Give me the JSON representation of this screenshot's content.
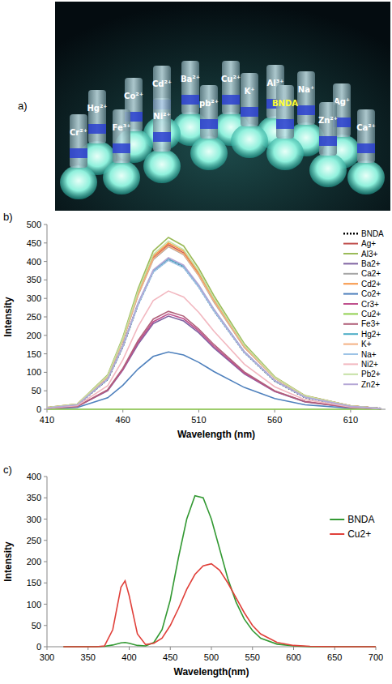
{
  "photo": {
    "panel": "a)",
    "labels": [
      {
        "text": "Cr²⁺",
        "color": "#ffffff"
      },
      {
        "text": "Hg²⁺",
        "color": "#ffffff"
      },
      {
        "text": "Fe³⁺",
        "color": "#ffffff"
      },
      {
        "text": "Co²⁺",
        "color": "#ffffff"
      },
      {
        "text": "Ni²⁺",
        "color": "#ffffff"
      },
      {
        "text": "Cd²⁺",
        "color": "#ffffff"
      },
      {
        "text": "Ba²⁺",
        "color": "#ffffff"
      },
      {
        "text": "pb²⁺",
        "color": "#ffffff"
      },
      {
        "text": "Cu²⁺",
        "color": "#ffffff"
      },
      {
        "text": "K⁺",
        "color": "#ffffff"
      },
      {
        "text": "Al³⁺",
        "color": "#ffffff"
      },
      {
        "text": "BNDA",
        "color": "#ffff33"
      },
      {
        "text": "Na⁺",
        "color": "#ffffff"
      },
      {
        "text": "Zn²⁺",
        "color": "#ffffff"
      },
      {
        "text": "Ag⁺",
        "color": "#ffffff"
      },
      {
        "text": "Ca²⁺",
        "color": "#ffffff"
      }
    ]
  },
  "chart_data": [
    {
      "type": "line",
      "panel": "b)",
      "x_label": "Wavelength (nm)",
      "y_label": "Intensity",
      "legend": "top-right",
      "grid": false,
      "xlim": [
        410,
        633
      ],
      "xticks": [
        410,
        460,
        510,
        560,
        610
      ],
      "ylim": [
        0,
        500
      ],
      "yticks": [
        0,
        50,
        100,
        150,
        200,
        250,
        300,
        350,
        400,
        450,
        500
      ],
      "x": [
        410,
        430,
        450,
        460,
        470,
        480,
        490,
        500,
        510,
        520,
        540,
        560,
        580,
        610,
        630
      ],
      "series": [
        {
          "name": "BNDA",
          "color": "#000000",
          "line_style": "dotted",
          "values": [
            4,
            12,
            81,
            170,
            284,
            373,
            405,
            385,
            332,
            267,
            154,
            77,
            32,
            8,
            2
          ]
        },
        {
          "name": "Ag+",
          "color": "#c0504d",
          "line_style": "solid",
          "values": [
            4,
            13,
            89,
            187,
            312,
            409,
            445,
            423,
            365,
            294,
            169,
            85,
            36,
            9,
            2
          ]
        },
        {
          "name": "Al3+",
          "color": "#9bbb59",
          "line_style": "solid",
          "values": [
            5,
            14,
            93,
            195,
            326,
            428,
            465,
            442,
            381,
            307,
            177,
            88,
            37,
            9,
            2
          ]
        },
        {
          "name": "Ba2+",
          "color": "#8064a2",
          "line_style": "solid",
          "values": [
            3,
            8,
            50,
            106,
            176,
            232,
            252,
            239,
            207,
            166,
            96,
            48,
            20,
            5,
            1
          ]
        },
        {
          "name": "Ca2+",
          "color": "#a5a5a5",
          "line_style": "solid",
          "values": [
            4,
            13,
            88,
            185,
            308,
            405,
            440,
            418,
            361,
            290,
            167,
            84,
            35,
            9,
            2
          ]
        },
        {
          "name": "Cd2+",
          "color": "#f79646",
          "line_style": "solid",
          "values": [
            5,
            14,
            90,
            189,
            315,
            414,
            450,
            428,
            369,
            297,
            171,
            86,
            36,
            9,
            2
          ]
        },
        {
          "name": "Co2+",
          "color": "#4f81bd",
          "line_style": "solid",
          "values": [
            2,
            5,
            31,
            65,
            109,
            143,
            155,
            147,
            127,
            102,
            59,
            29,
            12,
            3,
            1
          ]
        },
        {
          "name": "Cr3+",
          "color": "#c0508d",
          "line_style": "solid",
          "values": [
            3,
            8,
            52,
            108,
            181,
            237,
            258,
            245,
            212,
            170,
            98,
            49,
            21,
            5,
            1
          ]
        },
        {
          "name": "Cu2+",
          "color": "#92d050",
          "line_style": "solid",
          "values": [
            0,
            0,
            0,
            0,
            0,
            0,
            0,
            0,
            0,
            0,
            0,
            0,
            0,
            0,
            0
          ]
        },
        {
          "name": "Fe3+",
          "color": "#b0607a",
          "line_style": "solid",
          "values": [
            3,
            8,
            53,
            111,
            186,
            244,
            265,
            252,
            217,
            175,
            101,
            50,
            21,
            5,
            1
          ]
        },
        {
          "name": "Hg2+",
          "color": "#4bacc6",
          "line_style": "solid",
          "values": [
            4,
            12,
            81,
            171,
            285,
            374,
            407,
            387,
            334,
            269,
            155,
            77,
            33,
            8,
            2
          ]
        },
        {
          "name": "K+",
          "color": "#f4b183",
          "line_style": "solid",
          "values": [
            4,
            13,
            88,
            186,
            309,
            407,
            442,
            420,
            362,
            292,
            168,
            84,
            35,
            9,
            2
          ]
        },
        {
          "name": "Na+",
          "color": "#9dc3e6",
          "line_style": "solid",
          "values": [
            4,
            12,
            81,
            169,
            282,
            371,
            403,
            383,
            330,
            266,
            153,
            77,
            32,
            8,
            2
          ]
        },
        {
          "name": "Ni2+",
          "color": "#f2b8c0",
          "line_style": "solid",
          "values": [
            3,
            10,
            64,
            134,
            224,
            294,
            320,
            304,
            262,
            211,
            122,
            61,
            26,
            6,
            2
          ]
        },
        {
          "name": "Pb2+",
          "color": "#c5e0a5",
          "line_style": "solid",
          "values": [
            5,
            14,
            91,
            191,
            319,
            419,
            455,
            432,
            373,
            300,
            173,
            86,
            36,
            9,
            2
          ]
        },
        {
          "name": "Zn2+",
          "color": "#b4a7d6",
          "line_style": "solid",
          "values": [
            4,
            12,
            82,
            172,
            287,
            377,
            410,
            390,
            336,
            271,
            156,
            78,
            33,
            8,
            2
          ]
        }
      ]
    },
    {
      "type": "line",
      "panel": "c)",
      "x_label": "Wavelength(nm)",
      "y_label": "Intensity",
      "legend": "top-right",
      "grid": false,
      "xlim": [
        300,
        700
      ],
      "xticks": [
        300,
        350,
        400,
        450,
        500,
        550,
        600,
        650,
        700
      ],
      "ylim": [
        0,
        400
      ],
      "yticks": [
        0,
        50,
        100,
        150,
        200,
        250,
        300,
        350,
        400
      ],
      "x": [
        320,
        340,
        360,
        370,
        380,
        390,
        395,
        400,
        410,
        420,
        430,
        440,
        450,
        460,
        470,
        480,
        490,
        500,
        510,
        520,
        530,
        540,
        550,
        560,
        580,
        600,
        620,
        650,
        700
      ],
      "series": [
        {
          "name": "BNDA",
          "color": "#339933",
          "line_style": "solid",
          "values": [
            0,
            0,
            0,
            1,
            4,
            9,
            10,
            8,
            3,
            2,
            10,
            40,
            110,
            210,
            300,
            355,
            350,
            300,
            230,
            160,
            105,
            65,
            38,
            20,
            6,
            2,
            0,
            0,
            0
          ]
        },
        {
          "name": "Cu2+",
          "color": "#e0403a",
          "line_style": "solid",
          "values": [
            0,
            0,
            0,
            2,
            40,
            140,
            155,
            120,
            30,
            5,
            8,
            20,
            50,
            90,
            135,
            170,
            190,
            195,
            180,
            150,
            115,
            80,
            50,
            30,
            10,
            3,
            1,
            0,
            0
          ]
        }
      ]
    }
  ]
}
